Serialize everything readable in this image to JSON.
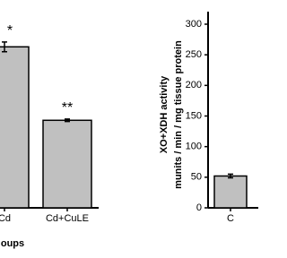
{
  "chart_data": [
    {
      "type": "bar",
      "categories": [
        "Cd",
        "Cd+CuLE"
      ],
      "values": [
        263,
        143
      ],
      "errors": [
        8,
        2
      ],
      "annotations": [
        "*",
        "**"
      ],
      "x_label": "oups",
      "color": "#c0c0c0",
      "ylim": [
        0,
        300
      ]
    },
    {
      "type": "bar",
      "categories": [
        "C"
      ],
      "values": [
        52
      ],
      "errors": [
        3
      ],
      "y_label": [
        "XO+XDH activity",
        "munits / min / mg tissue protein"
      ],
      "color": "#c0c0c0",
      "ylim": [
        0,
        300
      ],
      "yticks": [
        0,
        50,
        100,
        150,
        200,
        250,
        300
      ]
    }
  ]
}
